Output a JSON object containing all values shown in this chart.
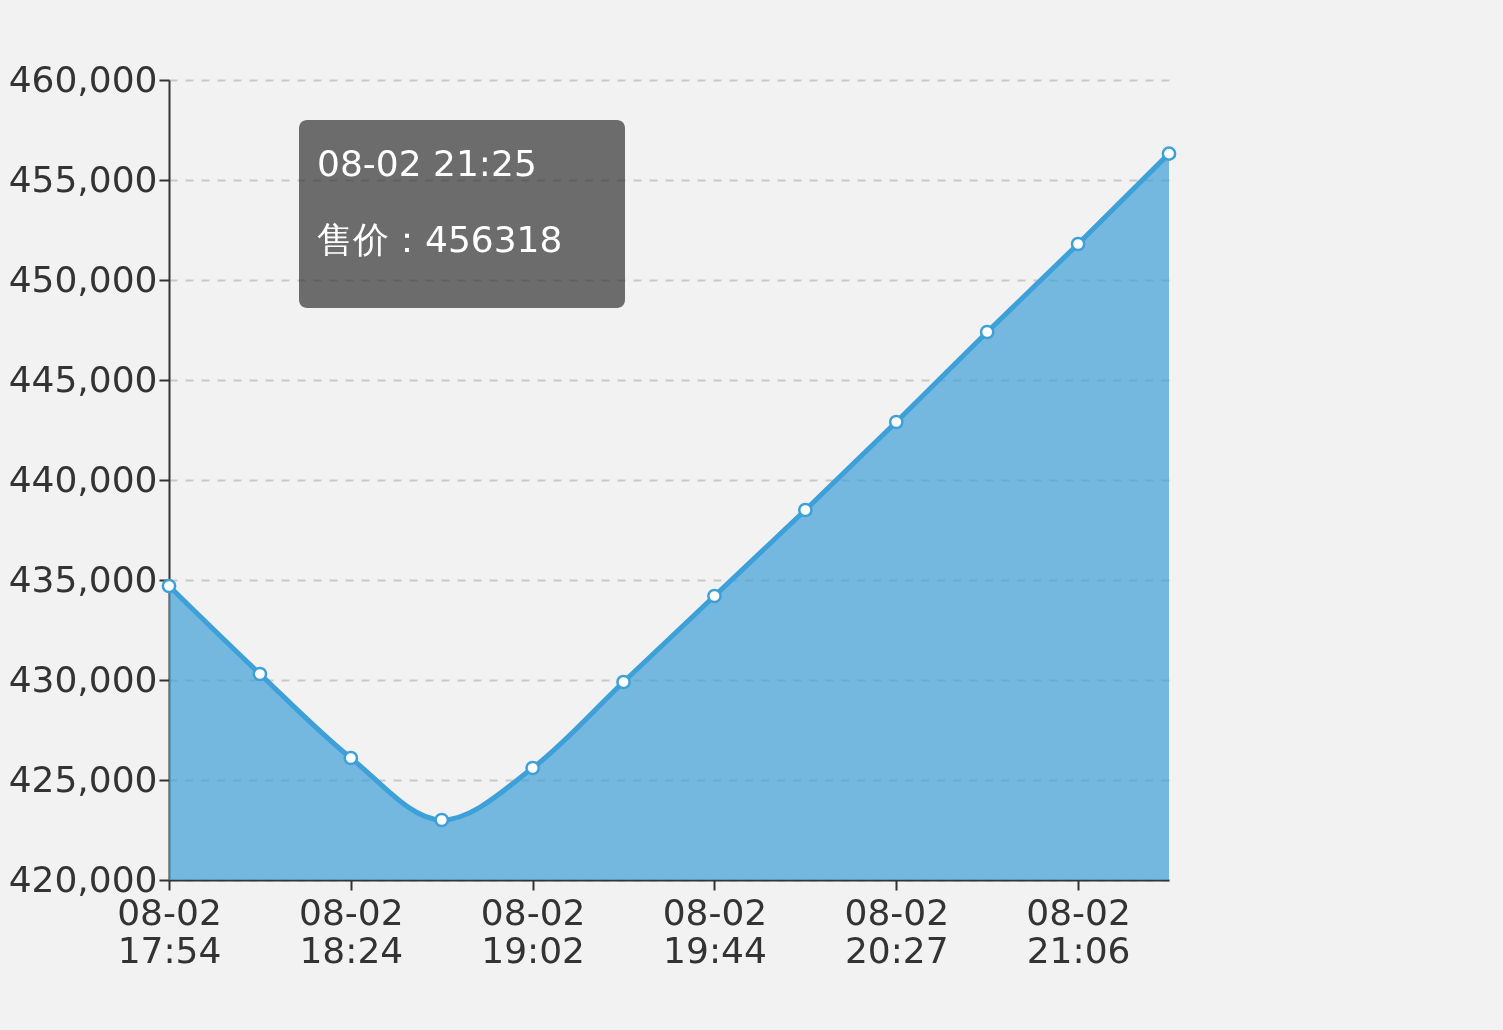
{
  "chart_data": {
    "type": "area",
    "categories": [
      "08-02\n17:54",
      null,
      "08-02\n18:24",
      null,
      "08-02\n19:02",
      null,
      "08-02\n19:44",
      null,
      "08-02\n20:27",
      null,
      "08-02\n21:06",
      null
    ],
    "series": [
      {
        "color": "#3ea0d8",
        "values": [
          434700,
          430300,
          426100,
          423000,
          425600,
          429900,
          434200,
          438500,
          442900,
          447400,
          451800,
          456318
        ]
      }
    ],
    "ylim": [
      420000,
      460000
    ],
    "yticks": [
      {
        "value": 420000,
        "label": "420,000"
      },
      {
        "value": 425000,
        "label": "425,000"
      },
      {
        "value": 430000,
        "label": "430,000"
      },
      {
        "value": 435000,
        "label": "435,000"
      },
      {
        "value": 440000,
        "label": "440,000"
      },
      {
        "value": 445000,
        "label": "445,000"
      },
      {
        "value": 450000,
        "label": "450,000"
      },
      {
        "value": 455000,
        "label": "455,000"
      },
      {
        "value": 460000,
        "label": "460,000"
      }
    ],
    "grid": "y",
    "marker": "circle",
    "annotations": [
      "08-02 21:25\n售价：456318"
    ]
  }
}
